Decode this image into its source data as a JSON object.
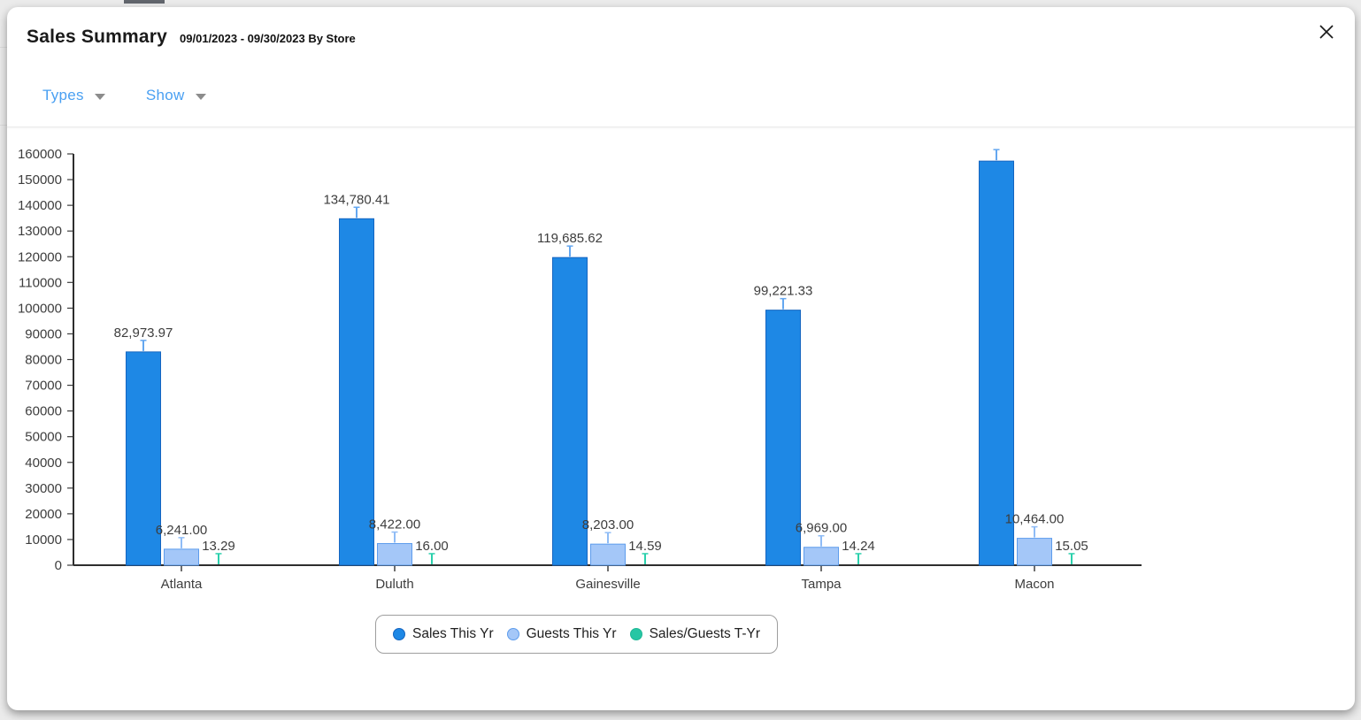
{
  "theme": {
    "accent_blue": "#4AA0F2",
    "text_dark": "#1A1A1A",
    "chart_text": "#3D3D3D",
    "legend_border": "#9E9E9E",
    "page_bg": "#EBEBEB",
    "icon_gray": "#8C8C8C"
  },
  "modal": {
    "title": "Sales Summary",
    "subtitle": "09/01/2023 - 09/30/2023 By Store"
  },
  "toolbar": {
    "types_label": "Types",
    "show_label": "Show"
  },
  "chart_data": {
    "type": "bar",
    "title": "Sales Summary 09/01/2023 - 09/30/2023 By Store",
    "xlabel": "",
    "ylabel": "",
    "ylim": [
      0,
      160000
    ],
    "ytick_step": 10000,
    "ytick_labels": [
      "0",
      "10000",
      "20000",
      "30000",
      "40000",
      "50000",
      "60000",
      "70000",
      "80000",
      "90000",
      "100000",
      "110000",
      "120000",
      "130000",
      "140000",
      "150000",
      "160000"
    ],
    "grid": false,
    "legend_position": "bottom",
    "categories": [
      "Atlanta",
      "Duluth",
      "Gainesville",
      "Tampa",
      "Macon"
    ],
    "series": [
      {
        "name": "Sales This Yr",
        "color": "#1E88E5",
        "border_color": "#1565C0",
        "stem_color": "#64A7F0",
        "values": [
          82973.97,
          134780.41,
          119685.62,
          99221.33,
          157200
        ],
        "labels": [
          "82,973.97",
          "134,780.41",
          "119,685.62",
          "99,221.33",
          null
        ]
      },
      {
        "name": "Guests This Yr",
        "color": "#A4C7F8",
        "border_color": "#5D9CEC",
        "stem_color": "#8FBCF6",
        "values": [
          6241,
          8422,
          8203,
          6969,
          10464
        ],
        "labels": [
          "6,241.00",
          "8,422.00",
          "8,203.00",
          "6,969.00",
          "10,464.00"
        ]
      },
      {
        "name": "Sales/Guests T-Yr",
        "color": "#27C6A4",
        "border_color": "#1FB896",
        "stem_color": "#2BD0AC",
        "values": [
          13.29,
          16.0,
          14.59,
          14.24,
          15.05
        ],
        "labels": [
          "13.29",
          "16.00",
          "14.59",
          "14.24",
          "15.05"
        ]
      }
    ]
  }
}
